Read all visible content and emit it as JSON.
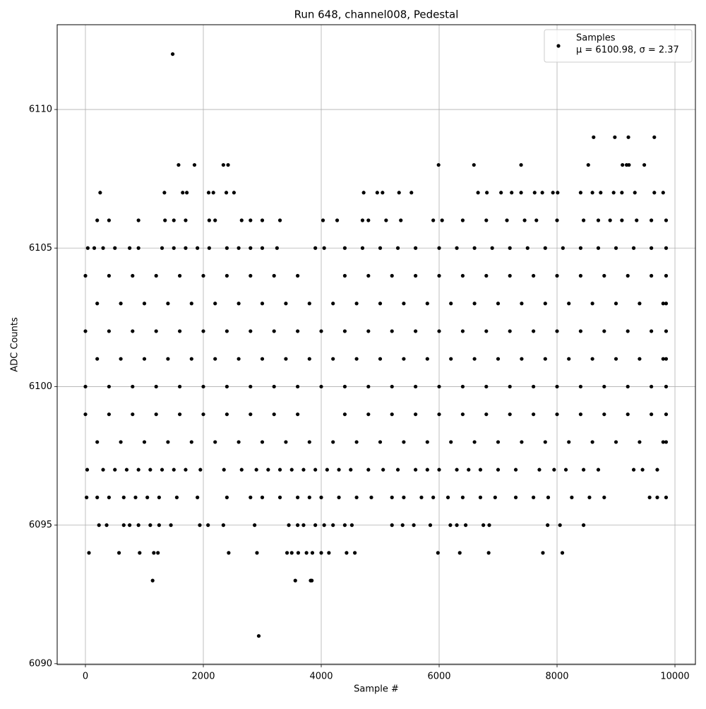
{
  "chart_data": {
    "type": "scatter",
    "title": "Run 648, channel008, Pedestal",
    "xlabel": "Sample #",
    "ylabel": "ADC Counts",
    "legend_note": "μ = 6100.98, σ = 2.37",
    "legend": "upper right",
    "grid": true,
    "xlim": [
      -479,
      10347
    ],
    "ylim": [
      6089.97,
      6113.06
    ],
    "xticks": [
      0,
      2000,
      4000,
      6000,
      8000,
      10000
    ],
    "yticks": [
      6090,
      6095,
      6100,
      6105,
      6110
    ],
    "series": [
      {
        "name": "Samples",
        "color": "#000000",
        "x": [
          0,
          400,
          800,
          1200,
          1600,
          2000,
          2400,
          2800,
          3200,
          3600,
          4400,
          4800,
          5200,
          5600,
          6000,
          6400,
          6800,
          7200,
          7600,
          8000,
          8400,
          8800,
          9200,
          9600,
          9850,
          200,
          600,
          1000,
          1400,
          1800,
          2200,
          2600,
          3000,
          3400,
          3800,
          4200,
          4600,
          5000,
          5400,
          5800,
          6200,
          6600,
          7000,
          7400,
          7800,
          8200,
          8600,
          9000,
          9400,
          9800,
          9850,
          0,
          400,
          800,
          1200,
          1600,
          2000,
          2400,
          2800,
          3200,
          3600,
          4000,
          4400,
          4800,
          5200,
          5600,
          6000,
          6400,
          6800,
          7200,
          7600,
          8000,
          8400,
          8800,
          9200,
          9600,
          9850,
          200,
          600,
          1000,
          1400,
          1800,
          2200,
          2600,
          3000,
          3400,
          3800,
          4200,
          4600,
          5000,
          5400,
          5800,
          6200,
          6600,
          7000,
          7400,
          7800,
          8200,
          8600,
          9000,
          9400,
          9800,
          9850,
          0,
          400,
          800,
          1200,
          1600,
          2000,
          2400,
          2800,
          3200,
          3600,
          4000,
          4400,
          4800,
          5200,
          5600,
          6000,
          6400,
          6800,
          7200,
          7600,
          8000,
          8400,
          8800,
          9200,
          9600,
          9850,
          0,
          400,
          800,
          1200,
          1600,
          2000,
          2400,
          2800,
          3200,
          3600,
          4400,
          4800,
          5200,
          5600,
          6000,
          6400,
          6800,
          7200,
          7600,
          8000,
          8400,
          8800,
          9200,
          9600,
          9850,
          200,
          600,
          1000,
          1400,
          1800,
          2200,
          2600,
          3000,
          3400,
          3800,
          4200,
          4600,
          5000,
          5400,
          5800,
          6200,
          6600,
          7000,
          7400,
          7800,
          8200,
          8600,
          9000,
          9400,
          9800,
          9850,
          40,
          150,
          300,
          500,
          750,
          900,
          1300,
          1500,
          1700,
          1900,
          2100,
          2400,
          2600,
          2800,
          3000,
          3250,
          3900,
          4050,
          4400,
          4700,
          5000,
          5300,
          5600,
          6000,
          6300,
          6600,
          6900,
          7200,
          7500,
          7800,
          8100,
          8400,
          8700,
          9000,
          9300,
          9600,
          9850,
          200,
          400,
          900,
          1350,
          1500,
          1700,
          2100,
          2200,
          2650,
          2800,
          3000,
          3300,
          4030,
          4270,
          4700,
          4800,
          5100,
          5350,
          5900,
          6050,
          6400,
          6800,
          7150,
          7450,
          7650,
          8000,
          8450,
          8700,
          8900,
          9100,
          9350,
          9600,
          9850,
          30,
          300,
          500,
          700,
          900,
          1100,
          1300,
          1500,
          1700,
          1950,
          2350,
          2650,
          2900,
          3100,
          3300,
          3500,
          3700,
          3900,
          4100,
          4300,
          4500,
          4800,
          5050,
          5300,
          5600,
          5800,
          6000,
          6300,
          6500,
          6700,
          7000,
          7300,
          7700,
          7950,
          8150,
          8450,
          8700,
          9300,
          9450,
          9700,
          20,
          200,
          400,
          650,
          850,
          1050,
          1250,
          1550,
          1900,
          2400,
          2800,
          3000,
          3300,
          3600,
          3800,
          4000,
          4300,
          4600,
          4850,
          5200,
          5400,
          5700,
          5900,
          6150,
          6400,
          6700,
          6950,
          7300,
          7600,
          7850,
          8250,
          8550,
          8800,
          9570,
          9700,
          9850,
          230,
          360,
          650,
          750,
          900,
          1100,
          1250,
          1450,
          1940,
          2080,
          2340,
          2870,
          3450,
          3600,
          3700,
          3900,
          4050,
          4200,
          4400,
          4520,
          5200,
          5380,
          5570,
          5850,
          6190,
          6300,
          6450,
          6750,
          6850,
          7840,
          8050,
          8450,
          60,
          570,
          920,
          1160,
          1230,
          2430,
          2910,
          3420,
          3500,
          3610,
          3750,
          3850,
          4000,
          4130,
          4430,
          4570,
          5980,
          6350,
          6840,
          7760,
          8090,
          250,
          1340,
          1650,
          1720,
          2090,
          2170,
          2390,
          2520,
          4720,
          4950,
          5040,
          5320,
          5530,
          6660,
          6810,
          7050,
          7230,
          7390,
          7620,
          7750,
          7930,
          8010,
          8400,
          8600,
          8740,
          8960,
          9100,
          9320,
          9650,
          9800,
          1580,
          1850,
          2340,
          2420,
          5990,
          6590,
          7390,
          8530,
          9110,
          9180,
          9220,
          9480,
          8620,
          8980,
          9210,
          9650,
          1140,
          3560,
          3820,
          3840,
          1480,
          2940
        ],
        "values": [
          6104,
          6104,
          6104,
          6104,
          6104,
          6104,
          6104,
          6104,
          6104,
          6104,
          6104,
          6104,
          6104,
          6104,
          6104,
          6104,
          6104,
          6104,
          6104,
          6104,
          6104,
          6104,
          6104,
          6104,
          6104,
          6103,
          6103,
          6103,
          6103,
          6103,
          6103,
          6103,
          6103,
          6103,
          6103,
          6103,
          6103,
          6103,
          6103,
          6103,
          6103,
          6103,
          6103,
          6103,
          6103,
          6103,
          6103,
          6103,
          6103,
          6103,
          6103,
          6102,
          6102,
          6102,
          6102,
          6102,
          6102,
          6102,
          6102,
          6102,
          6102,
          6102,
          6102,
          6102,
          6102,
          6102,
          6102,
          6102,
          6102,
          6102,
          6102,
          6102,
          6102,
          6102,
          6102,
          6102,
          6102,
          6101,
          6101,
          6101,
          6101,
          6101,
          6101,
          6101,
          6101,
          6101,
          6101,
          6101,
          6101,
          6101,
          6101,
          6101,
          6101,
          6101,
          6101,
          6101,
          6101,
          6101,
          6101,
          6101,
          6101,
          6101,
          6101,
          6100,
          6100,
          6100,
          6100,
          6100,
          6100,
          6100,
          6100,
          6100,
          6100,
          6100,
          6100,
          6100,
          6100,
          6100,
          6100,
          6100,
          6100,
          6100,
          6100,
          6100,
          6100,
          6100,
          6100,
          6100,
          6100,
          6099,
          6099,
          6099,
          6099,
          6099,
          6099,
          6099,
          6099,
          6099,
          6099,
          6099,
          6099,
          6099,
          6099,
          6099,
          6099,
          6099,
          6099,
          6099,
          6099,
          6099,
          6099,
          6099,
          6099,
          6099,
          6098,
          6098,
          6098,
          6098,
          6098,
          6098,
          6098,
          6098,
          6098,
          6098,
          6098,
          6098,
          6098,
          6098,
          6098,
          6098,
          6098,
          6098,
          6098,
          6098,
          6098,
          6098,
          6098,
          6098,
          6098,
          6098,
          6105,
          6105,
          6105,
          6105,
          6105,
          6105,
          6105,
          6105,
          6105,
          6105,
          6105,
          6105,
          6105,
          6105,
          6105,
          6105,
          6105,
          6105,
          6105,
          6105,
          6105,
          6105,
          6105,
          6105,
          6105,
          6105,
          6105,
          6105,
          6105,
          6105,
          6105,
          6105,
          6105,
          6105,
          6105,
          6105,
          6105,
          6106,
          6106,
          6106,
          6106,
          6106,
          6106,
          6106,
          6106,
          6106,
          6106,
          6106,
          6106,
          6106,
          6106,
          6106,
          6106,
          6106,
          6106,
          6106,
          6106,
          6106,
          6106,
          6106,
          6106,
          6106,
          6106,
          6106,
          6106,
          6106,
          6106,
          6106,
          6106,
          6106,
          6097,
          6097,
          6097,
          6097,
          6097,
          6097,
          6097,
          6097,
          6097,
          6097,
          6097,
          6097,
          6097,
          6097,
          6097,
          6097,
          6097,
          6097,
          6097,
          6097,
          6097,
          6097,
          6097,
          6097,
          6097,
          6097,
          6097,
          6097,
          6097,
          6097,
          6097,
          6097,
          6097,
          6097,
          6097,
          6097,
          6097,
          6097,
          6097,
          6097,
          6096,
          6096,
          6096,
          6096,
          6096,
          6096,
          6096,
          6096,
          6096,
          6096,
          6096,
          6096,
          6096,
          6096,
          6096,
          6096,
          6096,
          6096,
          6096,
          6096,
          6096,
          6096,
          6096,
          6096,
          6096,
          6096,
          6096,
          6096,
          6096,
          6096,
          6096,
          6096,
          6096,
          6096,
          6096,
          6096,
          6095,
          6095,
          6095,
          6095,
          6095,
          6095,
          6095,
          6095,
          6095,
          6095,
          6095,
          6095,
          6095,
          6095,
          6095,
          6095,
          6095,
          6095,
          6095,
          6095,
          6095,
          6095,
          6095,
          6095,
          6095,
          6095,
          6095,
          6095,
          6095,
          6095,
          6095,
          6095,
          6094,
          6094,
          6094,
          6094,
          6094,
          6094,
          6094,
          6094,
          6094,
          6094,
          6094,
          6094,
          6094,
          6094,
          6094,
          6094,
          6094,
          6094,
          6094,
          6094,
          6094,
          6107,
          6107,
          6107,
          6107,
          6107,
          6107,
          6107,
          6107,
          6107,
          6107,
          6107,
          6107,
          6107,
          6107,
          6107,
          6107,
          6107,
          6107,
          6107,
          6107,
          6107,
          6107,
          6107,
          6107,
          6107,
          6107,
          6107,
          6107,
          6107,
          6107,
          6108,
          6108,
          6108,
          6108,
          6108,
          6108,
          6108,
          6108,
          6108,
          6108,
          6108,
          6108,
          6109,
          6109,
          6109,
          6109,
          6093,
          6093,
          6093,
          6093,
          6112,
          6091
        ]
      }
    ]
  }
}
